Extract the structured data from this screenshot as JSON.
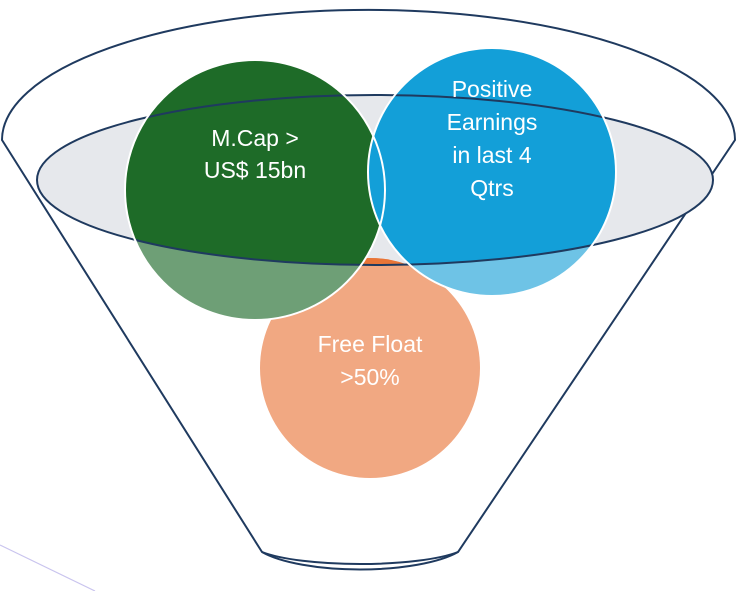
{
  "nodes": [
    {
      "lines": [
        "M.Cap >",
        "US$ 15bn"
      ]
    },
    {
      "lines": [
        "Positive",
        "Earnings",
        "in last 4",
        "Qtrs"
      ]
    },
    {
      "lines": [
        "Free Float",
        ">50%"
      ]
    }
  ]
}
